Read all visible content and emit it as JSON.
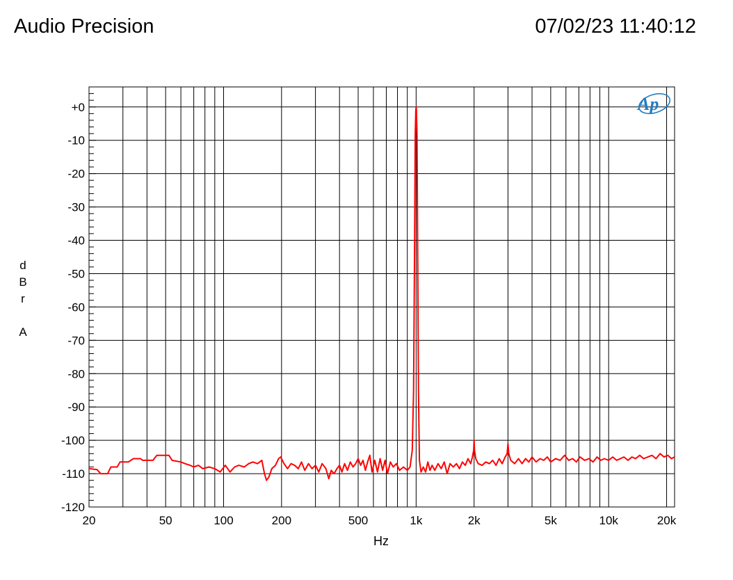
{
  "header": {
    "brand": "Audio Precision",
    "timestamp": "07/02/23 11:40:12"
  },
  "logo": {
    "text": "Ap",
    "color": "#1f7fc3"
  },
  "chart_data": {
    "type": "line",
    "title": "",
    "xlabel": "Hz",
    "ylabel_chars": [
      "d",
      "B",
      "r",
      "A"
    ],
    "xscale": "log",
    "xlim": [
      20,
      22000
    ],
    "ylim": [
      -120,
      6
    ],
    "grid": true,
    "xticks": [
      {
        "value": 20,
        "label": "20"
      },
      {
        "value": 50,
        "label": "50"
      },
      {
        "value": 100,
        "label": "100"
      },
      {
        "value": 200,
        "label": "200"
      },
      {
        "value": 500,
        "label": "500"
      },
      {
        "value": 1000,
        "label": "1k"
      },
      {
        "value": 2000,
        "label": "2k"
      },
      {
        "value": 5000,
        "label": "5k"
      },
      {
        "value": 10000,
        "label": "10k"
      },
      {
        "value": 20000,
        "label": "20k"
      }
    ],
    "yticks": [
      {
        "value": 0,
        "label": "+0"
      },
      {
        "value": -10,
        "label": "-10"
      },
      {
        "value": -20,
        "label": "-20"
      },
      {
        "value": -30,
        "label": "-30"
      },
      {
        "value": -40,
        "label": "-40"
      },
      {
        "value": -50,
        "label": "-50"
      },
      {
        "value": -60,
        "label": "-60"
      },
      {
        "value": -70,
        "label": "-70"
      },
      {
        "value": -80,
        "label": "-80"
      },
      {
        "value": -90,
        "label": "-90"
      },
      {
        "value": -100,
        "label": "-100"
      },
      {
        "value": -110,
        "label": "-110"
      },
      {
        "value": -120,
        "label": "-120"
      }
    ],
    "series": [
      {
        "color": "#ff0000",
        "points": [
          [
            20,
            -108.5
          ],
          [
            22,
            -108.8
          ],
          [
            23,
            -110
          ],
          [
            25,
            -110
          ],
          [
            26,
            -108
          ],
          [
            28,
            -108
          ],
          [
            29,
            -106.5
          ],
          [
            32,
            -106.5
          ],
          [
            34,
            -105.5
          ],
          [
            37,
            -105.5
          ],
          [
            38,
            -106
          ],
          [
            43,
            -106
          ],
          [
            45,
            -104.5
          ],
          [
            52,
            -104.5
          ],
          [
            54,
            -106
          ],
          [
            60,
            -106.5
          ],
          [
            63,
            -107
          ],
          [
            67,
            -107.5
          ],
          [
            70,
            -108
          ],
          [
            74,
            -107.5
          ],
          [
            78,
            -108.5
          ],
          [
            84,
            -108
          ],
          [
            90,
            -108.5
          ],
          [
            96,
            -109.5
          ],
          [
            102,
            -107.5
          ],
          [
            108,
            -109.5
          ],
          [
            114,
            -108
          ],
          [
            120,
            -107.5
          ],
          [
            128,
            -108
          ],
          [
            135,
            -107
          ],
          [
            142,
            -106.5
          ],
          [
            150,
            -107
          ],
          [
            158,
            -106
          ],
          [
            163,
            -110
          ],
          [
            167,
            -112
          ],
          [
            172,
            -111
          ],
          [
            178,
            -108.5
          ],
          [
            186,
            -107.5
          ],
          [
            193,
            -105.5
          ],
          [
            198,
            -105
          ],
          [
            206,
            -107
          ],
          [
            215,
            -108.5
          ],
          [
            224,
            -107
          ],
          [
            234,
            -107.5
          ],
          [
            244,
            -108.5
          ],
          [
            254,
            -106.5
          ],
          [
            264,
            -109
          ],
          [
            276,
            -107
          ],
          [
            288,
            -108.5
          ],
          [
            300,
            -107.5
          ],
          [
            312,
            -109.5
          ],
          [
            325,
            -107
          ],
          [
            340,
            -108.5
          ],
          [
            352,
            -111.5
          ],
          [
            362,
            -109
          ],
          [
            375,
            -110
          ],
          [
            388,
            -108.5
          ],
          [
            400,
            -107.5
          ],
          [
            412,
            -109.5
          ],
          [
            425,
            -107
          ],
          [
            440,
            -109
          ],
          [
            455,
            -106.5
          ],
          [
            470,
            -108
          ],
          [
            485,
            -107
          ],
          [
            500,
            -105.5
          ],
          [
            515,
            -107.5
          ],
          [
            530,
            -106
          ],
          [
            545,
            -109
          ],
          [
            560,
            -106.5
          ],
          [
            575,
            -104.5
          ],
          [
            590,
            -109.5
          ],
          [
            610,
            -106
          ],
          [
            630,
            -109.5
          ],
          [
            650,
            -105.5
          ],
          [
            670,
            -109
          ],
          [
            690,
            -106
          ],
          [
            710,
            -110
          ],
          [
            735,
            -106.5
          ],
          [
            760,
            -108
          ],
          [
            790,
            -107
          ],
          [
            820,
            -109
          ],
          [
            860,
            -108
          ],
          [
            900,
            -109
          ],
          [
            930,
            -108
          ],
          [
            955,
            -103
          ],
          [
            970,
            -85
          ],
          [
            982,
            -40
          ],
          [
            990,
            -8
          ],
          [
            996,
            -1
          ],
          [
            1000,
            0
          ],
          [
            1004,
            -1
          ],
          [
            1010,
            -8
          ],
          [
            1018,
            -40
          ],
          [
            1028,
            -85
          ],
          [
            1040,
            -106
          ],
          [
            1060,
            -109.5
          ],
          [
            1090,
            -108
          ],
          [
            1120,
            -109.5
          ],
          [
            1150,
            -106.5
          ],
          [
            1180,
            -109
          ],
          [
            1210,
            -107.5
          ],
          [
            1250,
            -109
          ],
          [
            1300,
            -107
          ],
          [
            1350,
            -108.5
          ],
          [
            1400,
            -106.5
          ],
          [
            1450,
            -110
          ],
          [
            1500,
            -107
          ],
          [
            1560,
            -108
          ],
          [
            1620,
            -107
          ],
          [
            1680,
            -108.5
          ],
          [
            1740,
            -106.5
          ],
          [
            1800,
            -107.5
          ],
          [
            1860,
            -105.5
          ],
          [
            1920,
            -107
          ],
          [
            1960,
            -105
          ],
          [
            1990,
            -103
          ],
          [
            2000,
            -100
          ],
          [
            2010,
            -103
          ],
          [
            2040,
            -105.5
          ],
          [
            2100,
            -107
          ],
          [
            2200,
            -107.5
          ],
          [
            2300,
            -106.5
          ],
          [
            2400,
            -107
          ],
          [
            2500,
            -106
          ],
          [
            2600,
            -107.5
          ],
          [
            2700,
            -105.5
          ],
          [
            2800,
            -107
          ],
          [
            2900,
            -105
          ],
          [
            2970,
            -104
          ],
          [
            3000,
            -101
          ],
          [
            3030,
            -104
          ],
          [
            3100,
            -106
          ],
          [
            3250,
            -107
          ],
          [
            3400,
            -105.5
          ],
          [
            3550,
            -107
          ],
          [
            3700,
            -105.5
          ],
          [
            3850,
            -106.5
          ],
          [
            4000,
            -105
          ],
          [
            4200,
            -106.5
          ],
          [
            4400,
            -105.5
          ],
          [
            4600,
            -106
          ],
          [
            4800,
            -105
          ],
          [
            5000,
            -106.5
          ],
          [
            5300,
            -105.5
          ],
          [
            5600,
            -106
          ],
          [
            5900,
            -104.5
          ],
          [
            6200,
            -106
          ],
          [
            6500,
            -105.5
          ],
          [
            6800,
            -106.5
          ],
          [
            7100,
            -105
          ],
          [
            7500,
            -106
          ],
          [
            7900,
            -105.5
          ],
          [
            8300,
            -106.5
          ],
          [
            8700,
            -105
          ],
          [
            9100,
            -106
          ],
          [
            9500,
            -105.5
          ],
          [
            10000,
            -106
          ],
          [
            10500,
            -105
          ],
          [
            11000,
            -106
          ],
          [
            11500,
            -105.5
          ],
          [
            12000,
            -105
          ],
          [
            12600,
            -106
          ],
          [
            13200,
            -105
          ],
          [
            13800,
            -105.5
          ],
          [
            14500,
            -104.5
          ],
          [
            15200,
            -105.5
          ],
          [
            16000,
            -105
          ],
          [
            16800,
            -104.5
          ],
          [
            17600,
            -105.5
          ],
          [
            18500,
            -104
          ],
          [
            19400,
            -105
          ],
          [
            20300,
            -104.5
          ],
          [
            21200,
            -105.5
          ],
          [
            22000,
            -105
          ]
        ]
      }
    ]
  }
}
